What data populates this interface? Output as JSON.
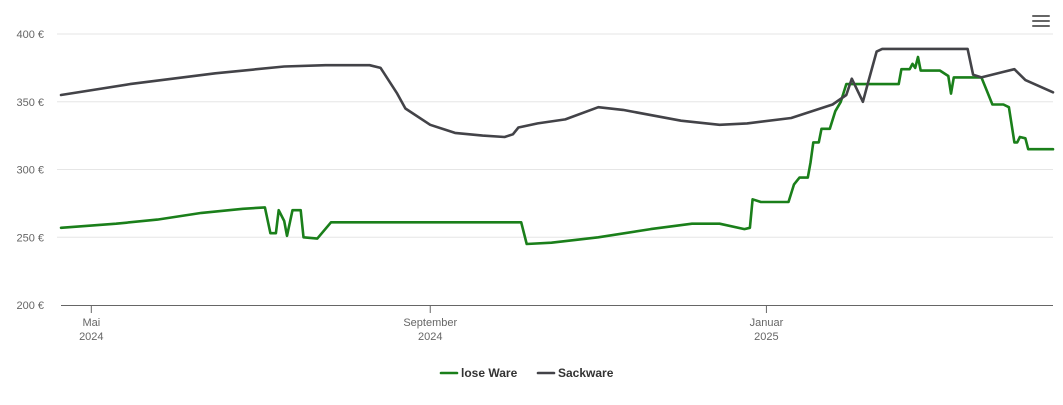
{
  "menu": {
    "icon": "hamburger-menu-icon"
  },
  "chart_data": {
    "type": "line",
    "title": "",
    "xlabel": "",
    "ylabel": "",
    "ylim": [
      200,
      400
    ],
    "y_ticks": [
      {
        "value": 200,
        "label": "200 €"
      },
      {
        "value": 250,
        "label": "250 €"
      },
      {
        "value": 300,
        "label": "300 €"
      },
      {
        "value": 350,
        "label": "350 €"
      },
      {
        "value": 400,
        "label": "400 €"
      }
    ],
    "x_range": [
      "2024-04-20",
      "2025-04-15"
    ],
    "x_ticks": [
      {
        "date": "2024-05-01",
        "line1": "Mai",
        "line2": "2024"
      },
      {
        "date": "2024-09-01",
        "line1": "September",
        "line2": "2024"
      },
      {
        "date": "2025-01-01",
        "line1": "Januar",
        "line2": "2025"
      }
    ],
    "grid": true,
    "legend_position": "bottom-center",
    "series": [
      {
        "name": "lose Ware",
        "color": "#1a7f1a",
        "points": [
          [
            "2024-04-20",
            257
          ],
          [
            "2024-05-10",
            260
          ],
          [
            "2024-05-25",
            263
          ],
          [
            "2024-06-10",
            268
          ],
          [
            "2024-06-25",
            271
          ],
          [
            "2024-07-03",
            272
          ],
          [
            "2024-07-05",
            253
          ],
          [
            "2024-07-07",
            253
          ],
          [
            "2024-07-08",
            270
          ],
          [
            "2024-07-10",
            262
          ],
          [
            "2024-07-11",
            251
          ],
          [
            "2024-07-13",
            270
          ],
          [
            "2024-07-16",
            270
          ],
          [
            "2024-07-17",
            250
          ],
          [
            "2024-07-22",
            249
          ],
          [
            "2024-07-27",
            261
          ],
          [
            "2024-09-01",
            261
          ],
          [
            "2024-10-04",
            261
          ],
          [
            "2024-10-06",
            245
          ],
          [
            "2024-10-15",
            246
          ],
          [
            "2024-11-01",
            250
          ],
          [
            "2024-11-20",
            256
          ],
          [
            "2024-12-05",
            260
          ],
          [
            "2024-12-15",
            260
          ],
          [
            "2024-12-24",
            256
          ],
          [
            "2024-12-26",
            257
          ],
          [
            "2024-12-27",
            278
          ],
          [
            "2024-12-30",
            276
          ],
          [
            "2025-01-07",
            276
          ],
          [
            "2025-01-09",
            276
          ],
          [
            "2025-01-11",
            289
          ],
          [
            "2025-01-13",
            294
          ],
          [
            "2025-01-16",
            294
          ],
          [
            "2025-01-17",
            305
          ],
          [
            "2025-01-18",
            320
          ],
          [
            "2025-01-19",
            320
          ],
          [
            "2025-01-20",
            320
          ],
          [
            "2025-01-21",
            330
          ],
          [
            "2025-01-24",
            330
          ],
          [
            "2025-01-26",
            343
          ],
          [
            "2025-01-28",
            350
          ],
          [
            "2025-01-30",
            363
          ],
          [
            "2025-02-18",
            363
          ],
          [
            "2025-02-19",
            374
          ],
          [
            "2025-02-22",
            374
          ],
          [
            "2025-02-23",
            378
          ],
          [
            "2025-02-24",
            375
          ],
          [
            "2025-02-25",
            383
          ],
          [
            "2025-02-26",
            373
          ],
          [
            "2025-03-05",
            373
          ],
          [
            "2025-03-08",
            369
          ],
          [
            "2025-03-09",
            356
          ],
          [
            "2025-03-10",
            368
          ],
          [
            "2025-03-20",
            368
          ],
          [
            "2025-03-22",
            358
          ],
          [
            "2025-03-24",
            348
          ],
          [
            "2025-03-28",
            348
          ],
          [
            "2025-03-30",
            346
          ],
          [
            "2025-04-01",
            320
          ],
          [
            "2025-04-02",
            320
          ],
          [
            "2025-04-03",
            324
          ],
          [
            "2025-04-05",
            323
          ],
          [
            "2025-04-06",
            315
          ],
          [
            "2025-04-15",
            315
          ]
        ]
      },
      {
        "name": "Sackware",
        "color": "#434348",
        "points": [
          [
            "2024-04-20",
            355
          ],
          [
            "2024-05-15",
            363
          ],
          [
            "2024-06-15",
            371
          ],
          [
            "2024-07-10",
            376
          ],
          [
            "2024-07-25",
            377
          ],
          [
            "2024-08-10",
            377
          ],
          [
            "2024-08-14",
            375
          ],
          [
            "2024-08-20",
            356
          ],
          [
            "2024-08-23",
            345
          ],
          [
            "2024-09-01",
            333
          ],
          [
            "2024-09-10",
            327
          ],
          [
            "2024-09-20",
            325
          ],
          [
            "2024-09-28",
            324
          ],
          [
            "2024-10-01",
            326
          ],
          [
            "2024-10-03",
            331
          ],
          [
            "2024-10-10",
            334
          ],
          [
            "2024-10-20",
            337
          ],
          [
            "2024-11-01",
            346
          ],
          [
            "2024-11-10",
            344
          ],
          [
            "2024-12-01",
            336
          ],
          [
            "2024-12-15",
            333
          ],
          [
            "2024-12-25",
            334
          ],
          [
            "2025-01-10",
            338
          ],
          [
            "2025-01-25",
            348
          ],
          [
            "2025-01-30",
            355
          ],
          [
            "2025-02-01",
            367
          ],
          [
            "2025-02-05",
            350
          ],
          [
            "2025-02-07",
            365
          ],
          [
            "2025-02-10",
            387
          ],
          [
            "2025-02-12",
            389
          ],
          [
            "2025-03-05",
            389
          ],
          [
            "2025-03-15",
            389
          ],
          [
            "2025-03-17",
            370
          ],
          [
            "2025-03-20",
            368
          ],
          [
            "2025-03-28",
            372
          ],
          [
            "2025-04-01",
            374
          ],
          [
            "2025-04-05",
            366
          ],
          [
            "2025-04-15",
            357
          ]
        ]
      }
    ]
  }
}
